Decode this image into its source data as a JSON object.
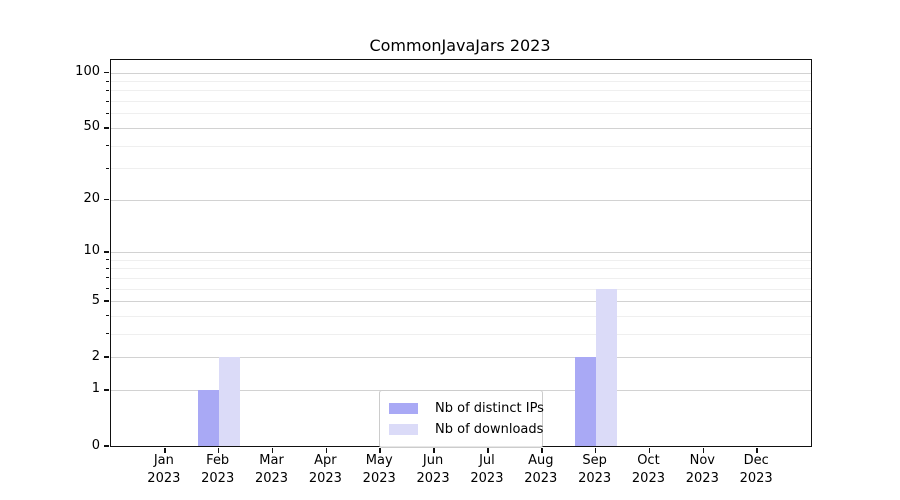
{
  "chart_data": {
    "type": "bar",
    "title": "CommonJavaJars 2023",
    "categories": [
      "Jan",
      "Feb",
      "Mar",
      "Apr",
      "May",
      "Jun",
      "Jul",
      "Aug",
      "Sep",
      "Oct",
      "Nov",
      "Dec"
    ],
    "category_year_label": "2023",
    "series": [
      {
        "name": "Nb of distinct IPs",
        "color": "#a9a9f5",
        "values": [
          0,
          1,
          0,
          0,
          0,
          0,
          0,
          0,
          2,
          0,
          0,
          0
        ]
      },
      {
        "name": "Nb of downloads",
        "color": "#dbdbf8",
        "values": [
          0,
          2,
          0,
          0,
          0,
          0,
          0,
          0,
          6,
          0,
          0,
          0
        ]
      }
    ],
    "xlabel": "",
    "ylabel": "",
    "yscale": "log1p",
    "yticks": [
      0,
      1,
      2,
      5,
      10,
      20,
      50,
      100
    ],
    "yticks_minor": [
      3,
      4,
      6,
      7,
      8,
      9,
      30,
      40,
      60,
      70,
      80,
      90
    ],
    "ylim": [
      0,
      117
    ],
    "grid": true,
    "legend_position": "lower center"
  }
}
